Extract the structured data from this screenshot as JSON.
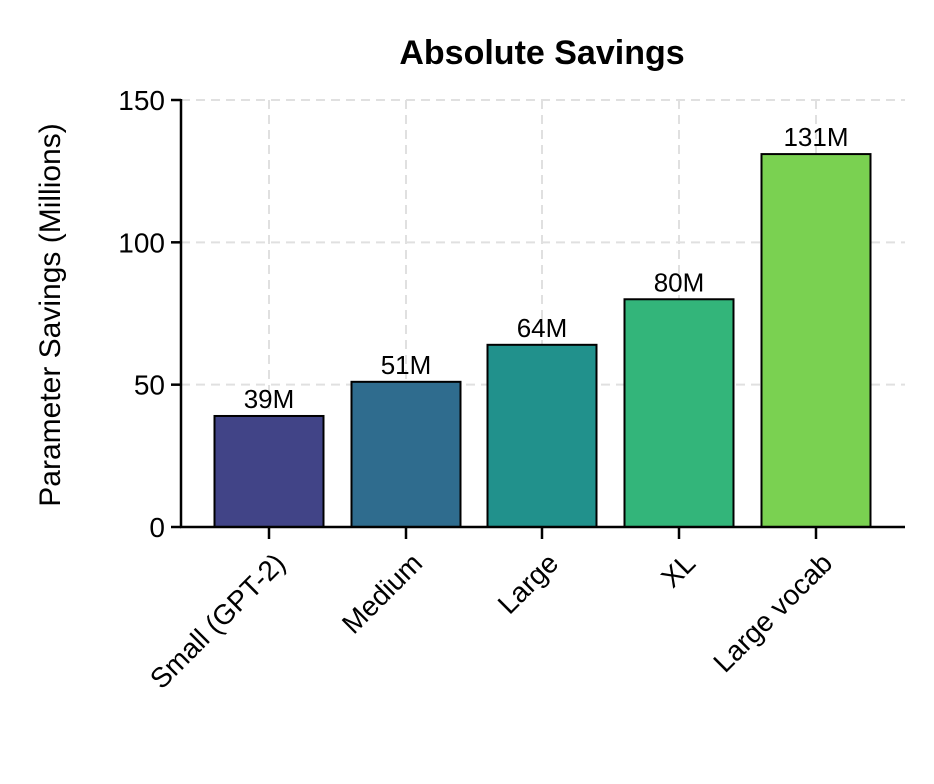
{
  "chart_data": {
    "type": "bar",
    "title": "Absolute Savings",
    "xlabel": "",
    "ylabel": "Parameter Savings (Millions)",
    "categories": [
      "Small (GPT-2)",
      "Medium",
      "Large",
      "XL",
      "Large vocab"
    ],
    "values": [
      39,
      51,
      64,
      80,
      131
    ],
    "value_labels": [
      "39M",
      "51M",
      "64M",
      "80M",
      "131M"
    ],
    "colors": [
      "#414487",
      "#2f6c8e",
      "#21918c",
      "#33b57a",
      "#7ad151"
    ],
    "ylim": [
      0,
      150
    ],
    "yticks": [
      0,
      50,
      100,
      150
    ],
    "grid": true,
    "legend": null
  }
}
